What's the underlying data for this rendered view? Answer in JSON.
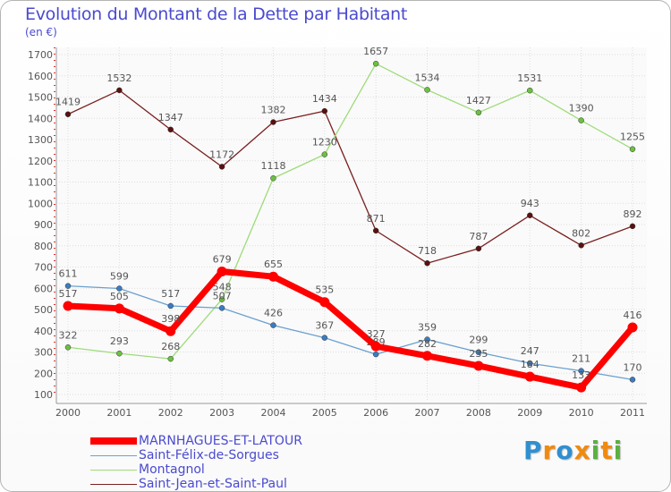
{
  "chart_data": {
    "type": "line",
    "title": "Evolution du Montant de la Dette par Habitant",
    "subtitle": "(en €)",
    "x": [
      "2000",
      "2001",
      "2002",
      "2003",
      "2004",
      "2005",
      "2006",
      "2007",
      "2008",
      "2009",
      "2010",
      "2011"
    ],
    "yticks": [
      "100",
      "200",
      "300",
      "400",
      "500",
      "600",
      "700",
      "800",
      "900",
      "1000",
      "1100",
      "1200",
      "1300",
      "1400",
      "1500",
      "1600",
      "1700"
    ],
    "ylim": [
      100,
      1700
    ],
    "series": [
      {
        "name": "Saint-Jean-et-Saint-Paul",
        "color": "#7a1f1f",
        "dot": "#5a1010",
        "values": [
          1419,
          1532,
          1347,
          1172,
          1382,
          1434,
          871,
          718,
          787,
          943,
          802,
          892
        ],
        "labels": [
          "1419",
          "1532",
          "1347",
          "1172",
          "1382",
          "1434",
          "871",
          "718",
          "787",
          "943",
          "802",
          "892"
        ]
      },
      {
        "name": "Montagnol",
        "color": "#9edb7a",
        "dot": "#6cc040",
        "values": [
          322,
          293,
          268,
          548,
          1118,
          1230,
          1657,
          1534,
          1427,
          1531,
          1390,
          1255
        ],
        "labels": [
          "322",
          "293",
          "268",
          "548",
          "1118",
          "1230",
          "1657",
          "1534",
          "1427",
          "1531",
          "1390",
          "1255"
        ]
      },
      {
        "name": "Saint-Félix-de-Sorgues",
        "color": "#6aa0d0",
        "dot": "#3a7cc0",
        "values": [
          611,
          599,
          517,
          507,
          426,
          367,
          289,
          359,
          299,
          247,
          211,
          170
        ],
        "labels": [
          "611",
          "599",
          "517",
          "507",
          "426",
          "367",
          "289",
          "359",
          "299",
          "247",
          "211",
          "170"
        ]
      },
      {
        "name": "MARNHAGUES-ET-LATOUR",
        "color": "#ff0000",
        "dot": "#ff0000",
        "values": [
          517,
          505,
          398,
          679,
          655,
          535,
          327,
          282,
          235,
          184,
          133,
          416
        ],
        "labels": [
          "517",
          "505",
          "398",
          "679",
          "655",
          "535",
          "327",
          "282",
          "235",
          "184",
          "133",
          "416"
        ]
      }
    ]
  },
  "legend": [
    {
      "label": "MARNHAGUES-ET-LATOUR",
      "color": "#ff0000",
      "thick": true
    },
    {
      "label": "Saint-Félix-de-Sorgues",
      "color": "#6aa0d0",
      "thick": false
    },
    {
      "label": "Montagnol",
      "color": "#9edb7a",
      "thick": false
    },
    {
      "label": "Saint-Jean-et-Saint-Paul",
      "color": "#7a1f1f",
      "thick": false
    }
  ],
  "logo": {
    "letters": [
      "P",
      "r",
      "o",
      "x",
      "i",
      "t",
      "i"
    ],
    "colors": [
      "#2f8fd0",
      "#f08a10",
      "#2f8fd0",
      "#f08a10",
      "#5ab040",
      "#f08a10",
      "#5ab040"
    ]
  }
}
